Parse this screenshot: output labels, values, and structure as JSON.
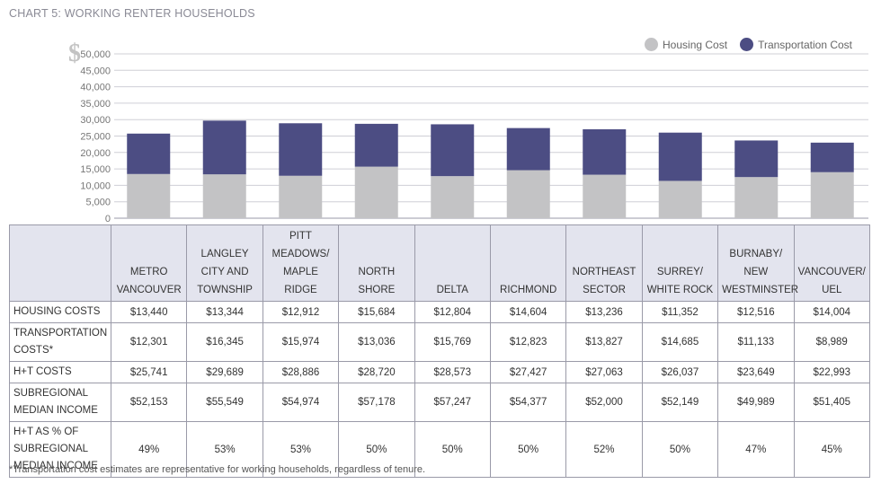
{
  "title": "CHART 5: WORKING RENTER HOUSEHOLDS",
  "currency_symbol": "$",
  "legend": [
    {
      "label": "Housing Cost",
      "color": "#c3c3c5"
    },
    {
      "label": "Transportation Cost",
      "color": "#4c4d83"
    }
  ],
  "chart_data": {
    "type": "bar",
    "stacked": true,
    "categories": [
      "METRO VANCOUVER",
      "LANGLEY CITY AND TOWNSHIP",
      "PITT MEADOWS/ MAPLE RIDGE",
      "NORTH SHORE",
      "DELTA",
      "RICHMOND",
      "NORTHEAST SECTOR",
      "SURREY/ WHITE ROCK",
      "BURNABY/ NEW WESTMINSTER",
      "VANCOUVER/ UEL"
    ],
    "series": [
      {
        "name": "Housing Cost",
        "color": "#c3c3c5",
        "values": [
          13440,
          13344,
          12912,
          15684,
          12804,
          14604,
          13236,
          11352,
          12516,
          14004
        ]
      },
      {
        "name": "Transportation Cost",
        "color": "#4c4d83",
        "values": [
          12301,
          16345,
          15974,
          13036,
          15769,
          12823,
          13827,
          14685,
          11133,
          8989
        ]
      }
    ],
    "ylim": [
      0,
      50000
    ],
    "yticks": [
      "0",
      "5,000",
      "10,000",
      "15,000",
      "20,000",
      "25,000",
      "30,000",
      "35,000",
      "40,000",
      "45,000",
      "50,000"
    ],
    "ytick_values": [
      0,
      5000,
      10000,
      15000,
      20000,
      25000,
      30000,
      35000,
      40000,
      45000,
      50000
    ],
    "grid": true,
    "legend_position": "top-right"
  },
  "table": {
    "columns": [
      [
        "METRO",
        "VANCOUVER"
      ],
      [
        "LANGLEY",
        "CITY AND",
        "TOWNSHIP"
      ],
      [
        "PITT",
        "MEADOWS/",
        "MAPLE RIDGE"
      ],
      [
        "NORTH",
        "SHORE"
      ],
      [
        "DELTA"
      ],
      [
        "RICHMOND"
      ],
      [
        "NORTHEAST",
        "SECTOR"
      ],
      [
        "SURREY/",
        "WHITE ROCK"
      ],
      [
        "BURNABY/",
        "NEW",
        "WESTMINSTER"
      ],
      [
        "VANCOUVER/",
        "UEL"
      ]
    ],
    "rows": [
      {
        "label": [
          "HOUSING COSTS"
        ],
        "values": [
          "$13,440",
          "$13,344",
          "$12,912",
          "$15,684",
          "$12,804",
          "$14,604",
          "$13,236",
          "$11,352",
          "$12,516",
          "$14,004"
        ]
      },
      {
        "label": [
          "TRANSPORTATION",
          "COSTS*"
        ],
        "values": [
          "$12,301",
          "$16,345",
          "$15,974",
          "$13,036",
          "$15,769",
          "$12,823",
          "$13,827",
          "$14,685",
          "$11,133",
          "$8,989"
        ]
      },
      {
        "label": [
          "H+T COSTS"
        ],
        "values": [
          "$25,741",
          "$29,689",
          "$28,886",
          "$28,720",
          "$28,573",
          "$27,427",
          "$27,063",
          "$26,037",
          "$23,649",
          "$22,993"
        ]
      },
      {
        "label": [
          "SUBREGIONAL",
          "MEDIAN INCOME"
        ],
        "values": [
          "$52,153",
          "$55,549",
          "$54,974",
          "$57,178",
          "$57,247",
          "$54,377",
          "$52,000",
          "$52,149",
          "$49,989",
          "$51,405"
        ]
      },
      {
        "label": [
          "H+T AS % OF",
          "SUBREGIONAL",
          "MEDIAN INCOME"
        ],
        "values": [
          "49%",
          "53%",
          "53%",
          "50%",
          "50%",
          "50%",
          "52%",
          "50%",
          "47%",
          "45%"
        ]
      }
    ]
  },
  "footnote": "*Transportation cost estimates are representative for working households, regardless of tenure."
}
